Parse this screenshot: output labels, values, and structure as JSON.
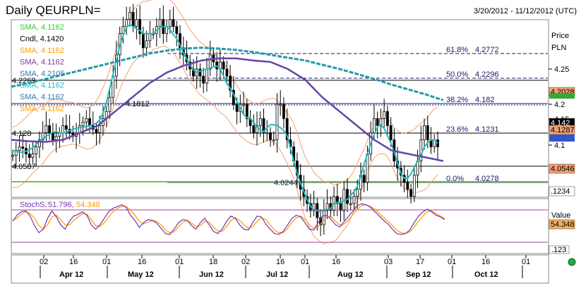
{
  "header": {
    "title": "Daily QEURPLN=",
    "date_range": "3/20/2012 - 11/12/2012 (UTC)"
  },
  "colors": {
    "sma_green": "#33cc33",
    "cndl": "#000000",
    "sma_orange": "#ff9900",
    "sma_purple": "#6644aa",
    "sma_teal": "#2299aa",
    "sma_cyan": "#22bbbb",
    "bollinger": "#f4a070",
    "stoch_k": "#7733aa",
    "stoch_d": "#ff9900",
    "support_green": "#66cc33"
  },
  "legend": [
    {
      "label": "SMA, 4.1162",
      "color": "#33cc33"
    },
    {
      "label": "Cndl, 4.1420",
      "color": "#000000"
    },
    {
      "label": "SMA, 4.1162",
      "color": "#ff9900"
    },
    {
      "label": "SMA, 4.1162",
      "color": "#7a3a9a"
    },
    {
      "label": "SMA, 4.2105",
      "color": "#3377aa"
    },
    {
      "label": "SMA, 4.1162",
      "color": "#22bbbb"
    },
    {
      "label": "SMA, 4.1162",
      "color": "#3377aa"
    },
    {
      "label": "SMA, 4.1162",
      "color": "#ff9900"
    }
  ],
  "price_axis": {
    "label_line1": "Price",
    "label_line2": "PLN",
    "ticks": [
      "4.25",
      "4.2",
      "4.15",
      "4.1"
    ],
    "badges": [
      {
        "text": "4.2028",
        "bg": "#f4a070"
      },
      {
        "text": "4.142",
        "bg": "#000000"
      },
      {
        "text": "4.1287",
        "bg": "#f4a070"
      },
      {
        "text": "4.0546",
        "bg": "#f4a070"
      },
      {
        "text": ".1234",
        "bg": "#ffffff"
      }
    ]
  },
  "fib": [
    {
      "pct": "61.8%",
      "value": "4.2772"
    },
    {
      "pct": "50.0%",
      "value": "4.2296"
    },
    {
      "pct": "38.2%",
      "value": "4.182"
    },
    {
      "pct": "23.6%",
      "value": "4.1231"
    },
    {
      "pct": "0.0%",
      "value": "4.0278"
    }
  ],
  "level_labels": [
    "4.2269",
    "4.1812",
    "4.128",
    "4.0587",
    "4.0244"
  ],
  "stoch": {
    "label": "StochS",
    "k_value": "51.796",
    "d_value": "54.348",
    "axis_label": "Value",
    "badge": "54.348",
    "badge2": ".123"
  },
  "x_axis": {
    "day_ticks": [
      "02",
      "16",
      "01",
      "16",
      "01",
      "18",
      "02",
      "16",
      "01",
      "16",
      "03",
      "17",
      "01",
      "16",
      "01"
    ],
    "months": [
      "Apr 12",
      "May 12",
      "Jun 12",
      "Jul 12",
      "Aug 12",
      "Sep 12",
      "Oct 12"
    ]
  },
  "chart_data": {
    "type": "line",
    "title": "Daily QEURPLN=",
    "date_range": "3/20/2012 - 11/12/2012 (UTC)",
    "price_axis_ticks": [
      4.25,
      4.2,
      4.15,
      4.1
    ],
    "close": [
      4.128,
      4.135,
      4.14,
      4.138,
      4.13,
      4.125,
      4.13,
      4.14,
      4.15,
      4.16,
      4.17,
      4.16,
      4.15,
      4.155,
      4.16,
      4.17,
      4.165,
      4.16,
      4.155,
      4.16,
      4.17,
      4.175,
      4.18,
      4.17,
      4.165,
      4.16,
      4.17,
      4.18,
      4.19,
      4.21,
      4.24,
      4.27,
      4.3,
      4.31,
      4.32,
      4.33,
      4.31,
      4.32,
      4.3,
      4.28,
      4.29,
      4.3,
      4.3,
      4.31,
      4.32,
      4.3,
      4.31,
      4.32,
      4.31,
      4.3,
      4.28,
      4.27,
      4.26,
      4.25,
      4.24,
      4.25,
      4.24,
      4.23,
      4.25,
      4.27,
      4.26,
      4.25,
      4.26,
      4.25,
      4.24,
      4.22,
      4.2,
      4.19,
      4.2,
      4.2,
      4.18,
      4.17,
      4.16,
      4.17,
      4.18,
      4.16,
      4.16,
      4.15,
      4.15,
      4.2,
      4.2,
      4.18,
      4.15,
      4.14,
      4.12,
      4.1,
      4.08,
      4.07,
      4.06,
      4.05,
      4.06,
      4.04,
      4.03,
      4.05,
      4.06,
      4.05,
      4.07,
      4.06,
      4.05,
      4.08,
      4.06,
      4.06,
      4.07,
      4.08,
      4.1,
      4.09,
      4.13,
      4.16,
      4.18,
      4.17,
      4.18,
      4.19,
      4.17,
      4.15,
      4.12,
      4.11,
      4.1,
      4.09,
      4.08,
      4.07,
      4.1,
      4.12,
      4.15,
      4.17,
      4.15,
      4.14,
      4.15,
      4.14
    ],
    "sma_long": [
      4.225,
      4.23,
      4.236,
      4.242,
      4.248,
      4.254,
      4.26,
      4.266,
      4.272,
      4.276,
      4.279,
      4.28,
      4.279,
      4.277,
      4.274,
      4.27,
      4.266,
      4.262,
      4.256,
      4.25,
      4.243,
      4.236,
      4.228,
      4.221,
      4.214,
      4.206
    ],
    "sma_mid": [
      4.15,
      4.148,
      4.147,
      4.15,
      4.16,
      4.17,
      4.19,
      4.21,
      4.23,
      4.245,
      4.255,
      4.262,
      4.265,
      4.265,
      4.262,
      4.26,
      4.25,
      4.235,
      4.21,
      4.19,
      4.17,
      4.15,
      4.135,
      4.13,
      4.125,
      4.12
    ],
    "fib_levels": [
      {
        "pct": "61.8%",
        "value": 4.2772
      },
      {
        "pct": "50.0%",
        "value": 4.2296
      },
      {
        "pct": "38.2%",
        "value": 4.182
      },
      {
        "pct": "23.6%",
        "value": 4.1231
      },
      {
        "pct": "0.0%",
        "value": 4.0278
      }
    ],
    "stoch_k": [
      48,
      62,
      70,
      72,
      60,
      38,
      22,
      30,
      55,
      72,
      58,
      40,
      30,
      48,
      60,
      64,
      70,
      62,
      40,
      30,
      40,
      55,
      70,
      78,
      82,
      86,
      80,
      62,
      50,
      34,
      45,
      52,
      50,
      44,
      32,
      20,
      18,
      30,
      45,
      52,
      50,
      38,
      30,
      45,
      55,
      40,
      25,
      20,
      30,
      48,
      60,
      55,
      40,
      30,
      28,
      45,
      60,
      58,
      42,
      30,
      20,
      18,
      25,
      40,
      55,
      62,
      58,
      44,
      30,
      28,
      45,
      60,
      62,
      52,
      40,
      35,
      48,
      60,
      72,
      84,
      88,
      86,
      80,
      70,
      60,
      50,
      42,
      30,
      20,
      18,
      20,
      28,
      45,
      60,
      70,
      76,
      70,
      62,
      58,
      52
    ],
    "stoch_d": [
      50,
      55,
      64,
      70,
      66,
      55,
      38,
      30,
      40,
      58,
      62,
      52,
      40,
      40,
      50,
      58,
      66,
      64,
      52,
      38,
      36,
      45,
      58,
      70,
      78,
      82,
      82,
      74,
      62,
      48,
      42,
      46,
      50,
      48,
      40,
      28,
      22,
      24,
      36,
      46,
      50,
      44,
      36,
      38,
      48,
      46,
      35,
      26,
      25,
      36,
      50,
      56,
      50,
      40,
      32,
      36,
      48,
      56,
      52,
      40,
      28,
      22,
      22,
      32,
      46,
      56,
      60,
      52,
      40,
      32,
      36,
      48,
      58,
      58,
      48,
      40,
      42,
      52,
      64,
      76,
      84,
      86,
      82,
      76,
      66,
      56,
      48,
      38,
      28,
      22,
      20,
      24,
      34,
      48,
      60,
      70,
      72,
      66,
      60,
      54
    ],
    "stoch_last": {
      "k": 51.796,
      "d": 54.348
    },
    "x_labels": [
      "02",
      "16",
      "01",
      "16",
      "01",
      "18",
      "02",
      "16",
      "01",
      "16",
      "03",
      "17",
      "01",
      "16",
      "01"
    ],
    "months": [
      "Apr 12",
      "May 12",
      "Jun 12",
      "Jul 12",
      "Aug 12",
      "Sep 12",
      "Oct 12"
    ]
  }
}
